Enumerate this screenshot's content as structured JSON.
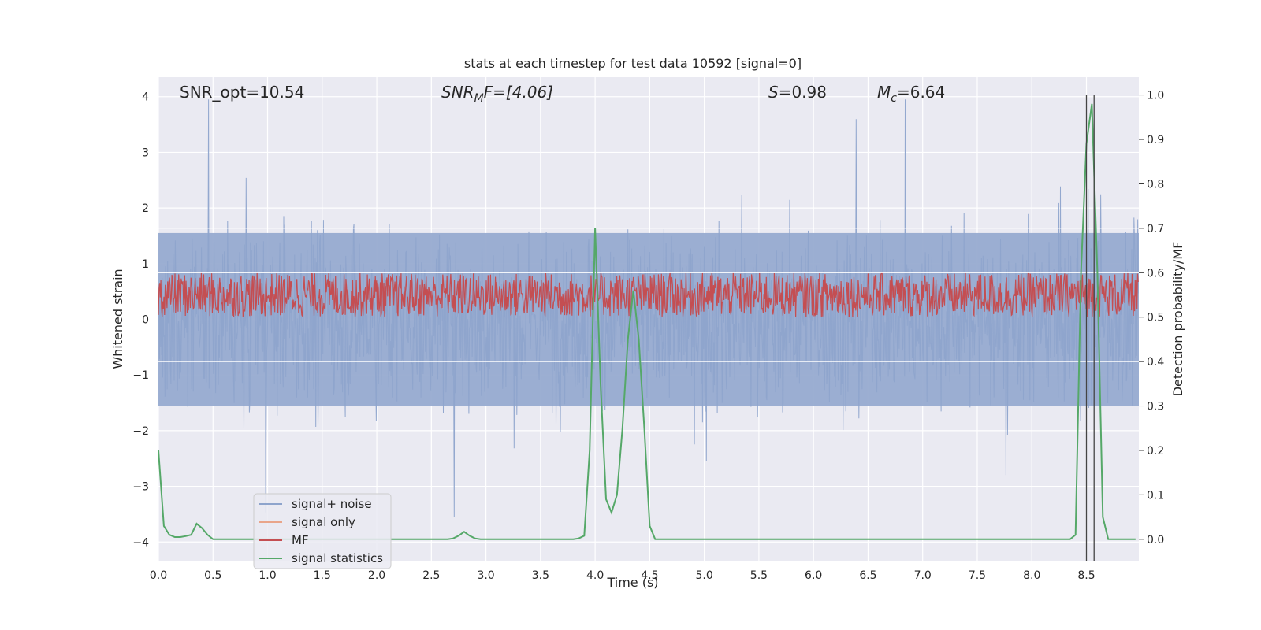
{
  "chart_data": {
    "type": "line",
    "title": "stats at each timestep for test data 10592 [signal=0]",
    "xlabel": "Time (s)",
    "ylabel_left": "Whitened strain",
    "ylabel_right": "Detection probability/MF",
    "xlim": [
      0.0,
      8.98
    ],
    "ylim_left": [
      -4.35,
      4.35
    ],
    "ylim_right": [
      -0.05,
      1.04
    ],
    "xticks": [
      0.0,
      0.5,
      1.0,
      1.5,
      2.0,
      2.5,
      3.0,
      3.5,
      4.0,
      4.5,
      5.0,
      5.5,
      6.0,
      6.5,
      7.0,
      7.5,
      8.0,
      8.5
    ],
    "xtick_labels": [
      "0.0",
      "0.5",
      "1.0",
      "1.5",
      "2.0",
      "2.5",
      "3.0",
      "3.5",
      "4.0",
      "4.5",
      "5.0",
      "5.5",
      "6.0",
      "6.5",
      "7.0",
      "7.5",
      "8.0",
      "8.5"
    ],
    "yticks_left": [
      4,
      3,
      2,
      1,
      0,
      -1,
      -2,
      -3,
      -4
    ],
    "ytick_labels_left": [
      "4",
      "3",
      "2",
      "1",
      "0",
      "−1",
      "−2",
      "−3",
      "−4"
    ],
    "yticks_right": [
      1.0,
      0.9,
      0.8,
      0.7,
      0.6,
      0.5,
      0.4,
      0.3,
      0.2,
      0.1,
      0.0
    ],
    "ytick_labels_right": [
      "1.0",
      "0.9",
      "0.8",
      "0.7",
      "0.6",
      "0.5",
      "0.4",
      "0.3",
      "0.2",
      "0.1",
      "0.0"
    ],
    "annotations": {
      "snr_opt": "SNR_opt=10.54",
      "snr_mf_base": "SNR",
      "snr_mf_sub": "M",
      "snr_mf_rest": "F=[4.06]",
      "s_var": "S",
      "s_rest": "=0.98",
      "mc_var": "M",
      "mc_sub": "c",
      "mc_rest": "=6.64"
    },
    "legend": {
      "placement": "lower-left",
      "entries": [
        {
          "label": "signal+ noise",
          "color": "#8ea4cc"
        },
        {
          "label": "signal only",
          "color": "#e9a58a"
        },
        {
          "label": "MF",
          "color": "#c44e52"
        },
        {
          "label": "signal statistics",
          "color": "#55a868"
        }
      ]
    },
    "vlines_time": [
      8.5,
      8.57
    ],
    "series": [
      {
        "name": "signal statistics",
        "axis": "right",
        "color": "#55a868",
        "x": [
          0.0,
          0.05,
          0.1,
          0.15,
          0.2,
          0.25,
          0.3,
          0.35,
          0.4,
          0.45,
          0.5,
          0.55,
          0.6,
          0.65,
          0.7,
          0.75,
          0.8,
          0.85,
          0.9,
          0.95,
          1.0,
          1.5,
          2.0,
          2.5,
          2.65,
          2.7,
          2.75,
          2.8,
          2.85,
          2.9,
          2.95,
          3.0,
          3.5,
          3.8,
          3.85,
          3.9,
          3.95,
          4.0,
          4.05,
          4.1,
          4.15,
          4.2,
          4.25,
          4.3,
          4.35,
          4.4,
          4.45,
          4.5,
          4.55,
          4.6,
          4.65,
          5.0,
          6.0,
          7.0,
          8.0,
          8.35,
          8.4,
          8.45,
          8.5,
          8.55,
          8.6,
          8.65,
          8.7,
          8.75,
          8.8,
          8.85,
          8.9,
          8.95
        ],
        "values": [
          0.2,
          0.03,
          0.01,
          0.005,
          0.005,
          0.007,
          0.01,
          0.035,
          0.025,
          0.01,
          0.0,
          0.0,
          0.0,
          0.0,
          0.0,
          0.0,
          0.0,
          0.0,
          0.0,
          0.0,
          0.0,
          0.0,
          0.0,
          0.0,
          0.0,
          0.002,
          0.008,
          0.017,
          0.008,
          0.002,
          0.0,
          0.0,
          0.0,
          0.0,
          0.002,
          0.008,
          0.2,
          0.7,
          0.35,
          0.09,
          0.06,
          0.1,
          0.25,
          0.45,
          0.56,
          0.45,
          0.25,
          0.03,
          0.0,
          0.0,
          0.0,
          0.0,
          0.0,
          0.0,
          0.0,
          0.0,
          0.01,
          0.6,
          0.89,
          0.98,
          0.6,
          0.05,
          0.0,
          0.0,
          0.0,
          0.0,
          0.0,
          0.0
        ]
      },
      {
        "name": "MF",
        "axis": "right",
        "color": "#c44e52",
        "description_range": [
          0.5,
          0.6
        ],
        "mean": 0.53
      },
      {
        "name": "signal+ noise",
        "axis": "left",
        "color": "#8ea4cc",
        "typical_range": [
          -1.5,
          1.5
        ],
        "extremes": [
          -4.0,
          4.0
        ]
      }
    ]
  }
}
